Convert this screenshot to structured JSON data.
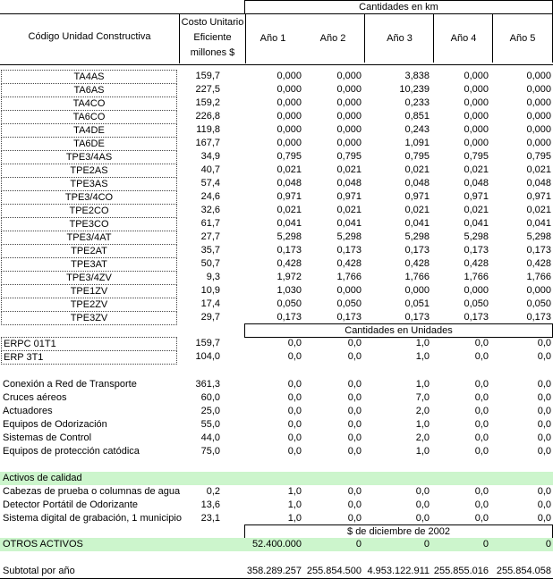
{
  "header": {
    "group_km": "Cantidades en km",
    "col_code": "Código Unidad Constructiva",
    "col_cost": [
      "Costo Unitario",
      "Eficiente",
      "millones $"
    ],
    "years": [
      "Año 1",
      "Año 2",
      "Año 3",
      "Año 4",
      "Año 5"
    ]
  },
  "km_rows": [
    {
      "code": "TA4AS",
      "cost": "159,7",
      "vals": [
        "0,000",
        "0,000",
        "3,838",
        "0,000",
        "0,000"
      ]
    },
    {
      "code": "TA6AS",
      "cost": "227,5",
      "vals": [
        "0,000",
        "0,000",
        "10,239",
        "0,000",
        "0,000"
      ]
    },
    {
      "code": "TA4CO",
      "cost": "159,2",
      "vals": [
        "0,000",
        "0,000",
        "0,233",
        "0,000",
        "0,000"
      ]
    },
    {
      "code": "TA6CO",
      "cost": "226,8",
      "vals": [
        "0,000",
        "0,000",
        "0,851",
        "0,000",
        "0,000"
      ]
    },
    {
      "code": "TA4DE",
      "cost": "119,8",
      "vals": [
        "0,000",
        "0,000",
        "0,243",
        "0,000",
        "0,000"
      ]
    },
    {
      "code": "TA6DE",
      "cost": "167,7",
      "vals": [
        "0,000",
        "0,000",
        "1,091",
        "0,000",
        "0,000"
      ]
    },
    {
      "code": "TPE3/4AS",
      "cost": "34,9",
      "vals": [
        "0,795",
        "0,795",
        "0,795",
        "0,795",
        "0,795"
      ]
    },
    {
      "code": "TPE2AS",
      "cost": "40,7",
      "vals": [
        "0,021",
        "0,021",
        "0,021",
        "0,021",
        "0,021"
      ]
    },
    {
      "code": "TPE3AS",
      "cost": "57,4",
      "vals": [
        "0,048",
        "0,048",
        "0,048",
        "0,048",
        "0,048"
      ]
    },
    {
      "code": "TPE3/4CO",
      "cost": "24,6",
      "vals": [
        "0,971",
        "0,971",
        "0,971",
        "0,971",
        "0,971"
      ]
    },
    {
      "code": "TPE2CO",
      "cost": "32,6",
      "vals": [
        "0,021",
        "0,021",
        "0,021",
        "0,021",
        "0,021"
      ]
    },
    {
      "code": "TPE3CO",
      "cost": "61,7",
      "vals": [
        "0,041",
        "0,041",
        "0,041",
        "0,041",
        "0,041"
      ]
    },
    {
      "code": "TPE3/4AT",
      "cost": "27,7",
      "vals": [
        "5,298",
        "5,298",
        "5,298",
        "5,298",
        "5,298"
      ]
    },
    {
      "code": "TPE2AT",
      "cost": "35,7",
      "vals": [
        "0,173",
        "0,173",
        "0,173",
        "0,173",
        "0,173"
      ]
    },
    {
      "code": "TPE3AT",
      "cost": "50,7",
      "vals": [
        "0,428",
        "0,428",
        "0,428",
        "0,428",
        "0,428"
      ]
    },
    {
      "code": "TPE3/4ZV",
      "cost": "9,3",
      "vals": [
        "1,972",
        "1,766",
        "1,766",
        "1,766",
        "1,766"
      ]
    },
    {
      "code": "TPE1ZV",
      "cost": "10,9",
      "vals": [
        "1,030",
        "0,000",
        "0,000",
        "0,000",
        "0,000"
      ]
    },
    {
      "code": "TPE2ZV",
      "cost": "17,4",
      "vals": [
        "0,050",
        "0,050",
        "0,051",
        "0,050",
        "0,050"
      ]
    },
    {
      "code": "TPE3ZV",
      "cost": "29,7",
      "vals": [
        "0,173",
        "0,173",
        "0,173",
        "0,173",
        "0,173"
      ]
    }
  ],
  "group_units": "Cantidades en Unidades",
  "erp_rows": [
    {
      "code": "ERPC 01T1",
      "cost": "159,7",
      "vals": [
        "0,0",
        "0,0",
        "1,0",
        "0,0",
        "0,0"
      ]
    },
    {
      "code": "ERP 3T1",
      "cost": "104,0",
      "vals": [
        "0,0",
        "0,0",
        "1,0",
        "0,0",
        "0,0"
      ]
    }
  ],
  "other_rows": [
    {
      "code": "Conexión a Red de Transporte",
      "cost": "361,3",
      "vals": [
        "0,0",
        "0,0",
        "1,0",
        "0,0",
        "0,0"
      ]
    },
    {
      "code": "Cruces aéreos",
      "cost": "60,0",
      "vals": [
        "0,0",
        "0,0",
        "7,0",
        "0,0",
        "0,0"
      ]
    },
    {
      "code": "Actuadores",
      "cost": "25,0",
      "vals": [
        "0,0",
        "0,0",
        "2,0",
        "0,0",
        "0,0"
      ]
    },
    {
      "code": "Equipos de Odorización",
      "cost": "55,0",
      "vals": [
        "0,0",
        "0,0",
        "1,0",
        "0,0",
        "0,0"
      ]
    },
    {
      "code": "Sistemas de Control",
      "cost": "44,0",
      "vals": [
        "0,0",
        "0,0",
        "2,0",
        "0,0",
        "0,0"
      ]
    },
    {
      "code": "Equipos de protección catódica",
      "cost": "75,0",
      "vals": [
        "0,0",
        "0,0",
        "1,0",
        "0,0",
        "0,0"
      ]
    }
  ],
  "quality_title": "Activos de calidad",
  "quality_rows": [
    {
      "code": "Cabezas de prueba o columnas de agua",
      "cost": "0,2",
      "vals": [
        "1,0",
        "0,0",
        "0,0",
        "0,0",
        "0,0"
      ]
    },
    {
      "code": "Detector Portátil de Odorizante",
      "cost": "13,6",
      "vals": [
        "1,0",
        "0,0",
        "0,0",
        "0,0",
        "0,0"
      ]
    },
    {
      "code": "Sistema digital de grabación, 1 municipio",
      "cost": "23,1",
      "vals": [
        "1,0",
        "0,0",
        "0,0",
        "0,0",
        "0,0"
      ]
    }
  ],
  "group_money": "$ de diciembre de 2002",
  "otros": {
    "label": "OTROS ACTIVOS",
    "vals": [
      "52.400.000",
      "0",
      "0",
      "0",
      "0"
    ]
  },
  "subtotal": {
    "label": "Subtotal por año",
    "vals": [
      "358.289.257",
      "255.854.500",
      "4.953.122.911",
      "255.855.016",
      "255.854.058"
    ]
  }
}
